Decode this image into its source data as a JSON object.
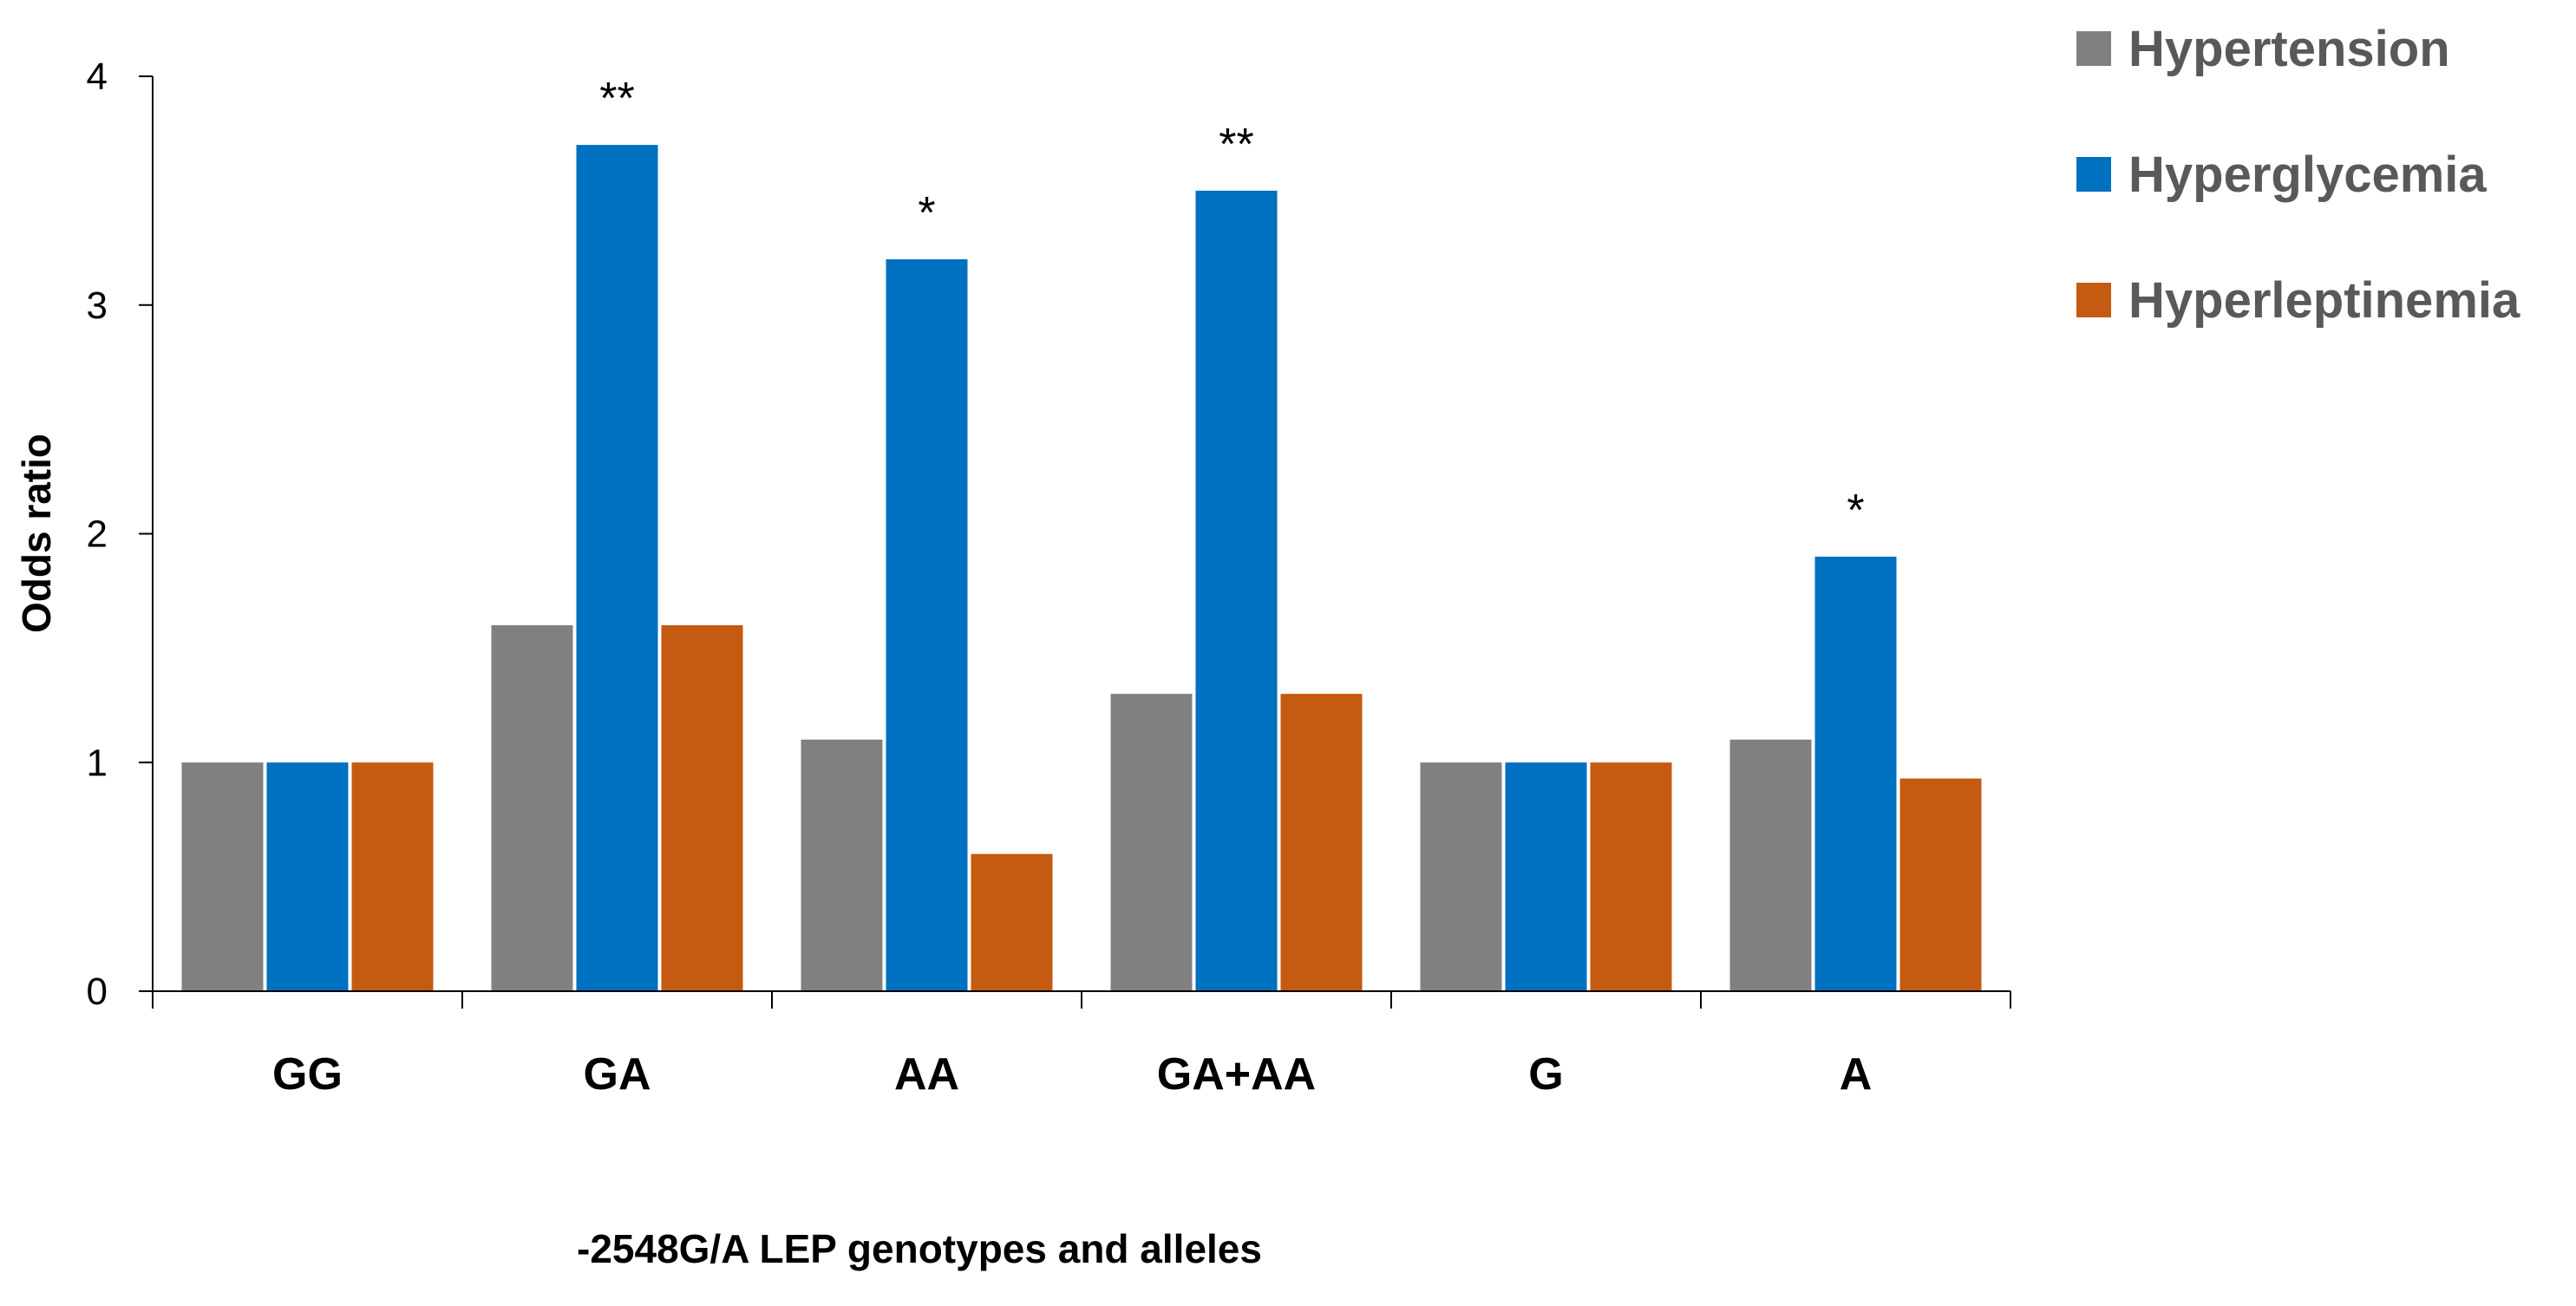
{
  "chart_data": {
    "type": "bar",
    "title": "",
    "xlabel": "-2548G/A LEP  genotypes and alleles",
    "ylabel": "Odds ratio",
    "ylim": [
      0,
      4
    ],
    "yticks": [
      0,
      1,
      2,
      3,
      4
    ],
    "grid": false,
    "legend_position": "top-right",
    "categories": [
      "GG",
      "GA",
      "AA",
      "GA+AA",
      "G",
      "A"
    ],
    "series": [
      {
        "name": "Hypertension",
        "color": "#808080",
        "values": [
          1.0,
          1.6,
          1.1,
          1.3,
          1.0,
          1.1
        ]
      },
      {
        "name": "Hyperglycemia",
        "color": "#0070C0",
        "values": [
          1.0,
          3.7,
          3.2,
          3.5,
          1.0,
          1.9
        ]
      },
      {
        "name": "Hyperleptinemia",
        "color": "#C55A11",
        "values": [
          1.0,
          1.6,
          0.6,
          1.3,
          1.0,
          0.93
        ]
      }
    ],
    "annotations": [
      {
        "category": "GA",
        "series": "Hyperglycemia",
        "text": "**"
      },
      {
        "category": "AA",
        "series": "Hyperglycemia",
        "text": "*"
      },
      {
        "category": "GA+AA",
        "series": "Hyperglycemia",
        "text": "**"
      },
      {
        "category": "A",
        "series": "Hyperglycemia",
        "text": "*"
      }
    ]
  }
}
